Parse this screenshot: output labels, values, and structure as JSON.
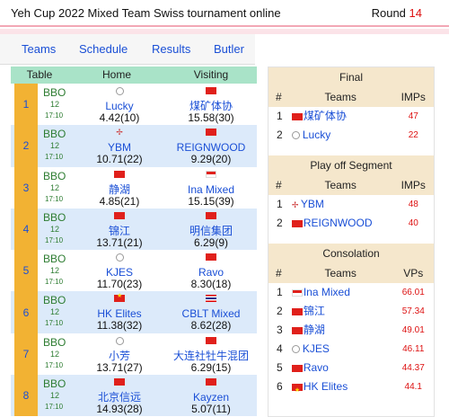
{
  "header": {
    "title": "Yeh Cup 2022 Mixed Team Swiss tournament online",
    "round_label": "Round",
    "round_number": "14"
  },
  "nav": {
    "teams": "Teams",
    "schedule": "Schedule",
    "results": "Results",
    "butler": "Butler"
  },
  "matches": {
    "headers": {
      "table": "Table",
      "home": "Home",
      "visiting": "Visiting"
    },
    "rows": [
      {
        "num": "1",
        "table": "BBO",
        "board": "12",
        "time": "17:10",
        "home_flag": "globe",
        "home": "Lucky",
        "home_score": "4.42(10)",
        "visit_flag": "china",
        "visit": "煤矿体协",
        "visit_score": "15.58(30)"
      },
      {
        "num": "2",
        "table": "BBO",
        "board": "12",
        "time": "17:10",
        "home_flag": "cross",
        "home": "YBM",
        "home_score": "10.71(22)",
        "visit_flag": "china",
        "visit": "REIGNWOOD",
        "visit_score": "9.29(20)"
      },
      {
        "num": "3",
        "table": "BBO",
        "board": "12",
        "time": "17:10",
        "home_flag": "china",
        "home": "静湖",
        "home_score": "4.85(21)",
        "visit_flag": "indonesia",
        "visit": "Ina Mixed",
        "visit_score": "15.15(39)"
      },
      {
        "num": "4",
        "table": "BBO",
        "board": "12",
        "time": "17:10",
        "home_flag": "china",
        "home": "锦江",
        "home_score": "13.71(21)",
        "visit_flag": "china",
        "visit": "明信集团",
        "visit_score": "6.29(9)"
      },
      {
        "num": "5",
        "table": "BBO",
        "board": "12",
        "time": "17:10",
        "home_flag": "globe",
        "home": "KJES",
        "home_score": "11.70(23)",
        "visit_flag": "china",
        "visit": "Ravo",
        "visit_score": "8.30(18)"
      },
      {
        "num": "6",
        "table": "BBO",
        "board": "12",
        "time": "17:10",
        "home_flag": "vietnam",
        "home": "HK Elites",
        "home_score": "11.38(32)",
        "visit_flag": "thailand",
        "visit": "CBLT Mixed",
        "visit_score": "8.62(28)"
      },
      {
        "num": "7",
        "table": "BBO",
        "board": "12",
        "time": "17:10",
        "home_flag": "globe",
        "home": "小芳",
        "home_score": "13.71(27)",
        "visit_flag": "china",
        "visit": "大连社牡牛混团",
        "visit_score": "6.29(15)"
      },
      {
        "num": "8",
        "table": "BBO",
        "board": "12",
        "time": "17:10",
        "home_flag": "china",
        "home": "北京信远",
        "home_score": "14.93(28)",
        "visit_flag": "china",
        "visit": "Kayzen",
        "visit_score": "5.07(11)"
      }
    ]
  },
  "final": {
    "title": "Final",
    "col_num": "#",
    "col_teams": "Teams",
    "col_score": "IMPs",
    "rows": [
      {
        "num": "1",
        "flag": "china",
        "team": "煤矿体协",
        "score": "47"
      },
      {
        "num": "2",
        "flag": "globe",
        "team": "Lucky",
        "score": "22"
      }
    ]
  },
  "playoff": {
    "title": "Play off Segment",
    "col_num": "#",
    "col_teams": "Teams",
    "col_score": "IMPs",
    "rows": [
      {
        "num": "1",
        "flag": "cross",
        "team": "YBM",
        "score": "48"
      },
      {
        "num": "2",
        "flag": "china",
        "team": "REIGNWOOD",
        "score": "40"
      }
    ]
  },
  "consolation": {
    "title": "Consolation",
    "col_num": "#",
    "col_teams": "Teams",
    "col_score": "VPs",
    "rows": [
      {
        "num": "1",
        "flag": "indonesia",
        "team": "Ina Mixed",
        "score": "66.01"
      },
      {
        "num": "2",
        "flag": "china",
        "team": "锦江",
        "score": "57.34"
      },
      {
        "num": "3",
        "flag": "china",
        "team": "静湖",
        "score": "49.01"
      },
      {
        "num": "4",
        "flag": "globe",
        "team": "KJES",
        "score": "46.11"
      },
      {
        "num": "5",
        "flag": "china",
        "team": "Ravo",
        "score": "44.37"
      },
      {
        "num": "6",
        "flag": "vietnam",
        "team": "HK Elites",
        "score": "44.1"
      }
    ]
  }
}
